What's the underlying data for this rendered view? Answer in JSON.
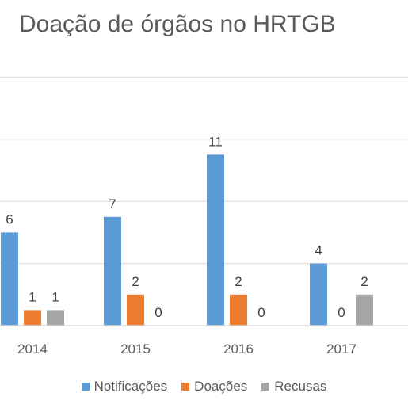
{
  "chart_data": {
    "type": "bar",
    "title": "Doação de órgãos no HRTGB",
    "xlabel": "",
    "ylabel": "",
    "categories": [
      "2014",
      "2015",
      "2016",
      "2017"
    ],
    "series": [
      {
        "name": "Notificações",
        "color": "#5b9bd5",
        "values": [
          6,
          7,
          11,
          4
        ]
      },
      {
        "name": "Doações",
        "color": "#ed7d31",
        "values": [
          1,
          2,
          2,
          0
        ]
      },
      {
        "name": "Recusas",
        "color": "#a5a5a5",
        "values": [
          1,
          0,
          0,
          2
        ]
      }
    ],
    "ylim": [
      0,
      20
    ],
    "grid": true,
    "legend": "bottom"
  }
}
